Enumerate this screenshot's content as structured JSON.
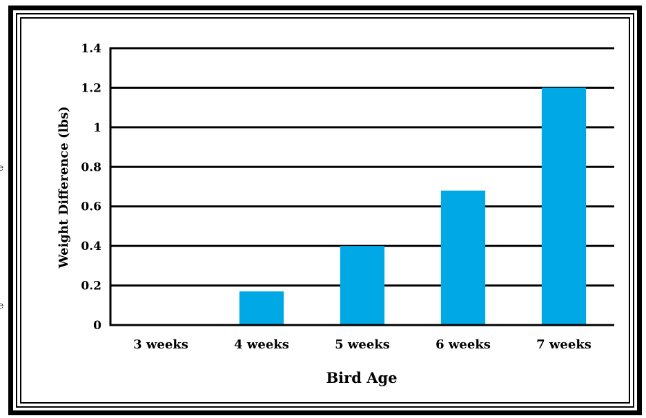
{
  "chart_data": {
    "type": "bar",
    "title": "",
    "categories": [
      "3 weeks",
      "4 weeks",
      "5 weeks",
      "6 weeks",
      "7 weeks"
    ],
    "values": [
      0,
      0.17,
      0.4,
      0.68,
      1.2
    ],
    "xlabel": "Bird Age",
    "ylabel": "Weight Difference (lbs)",
    "ylim": [
      0,
      1.4
    ],
    "yticks": [
      0,
      0.2,
      0.4,
      0.6,
      0.8,
      1,
      1.2,
      1.4
    ],
    "ytick_labels": [
      "0",
      "0.2",
      "0.4",
      "0.6",
      "0.8",
      "1",
      "1.2",
      "1.4"
    ],
    "grid": true,
    "bar_color": "#00A9E6"
  },
  "edge_text": [
    "e",
    "e"
  ]
}
